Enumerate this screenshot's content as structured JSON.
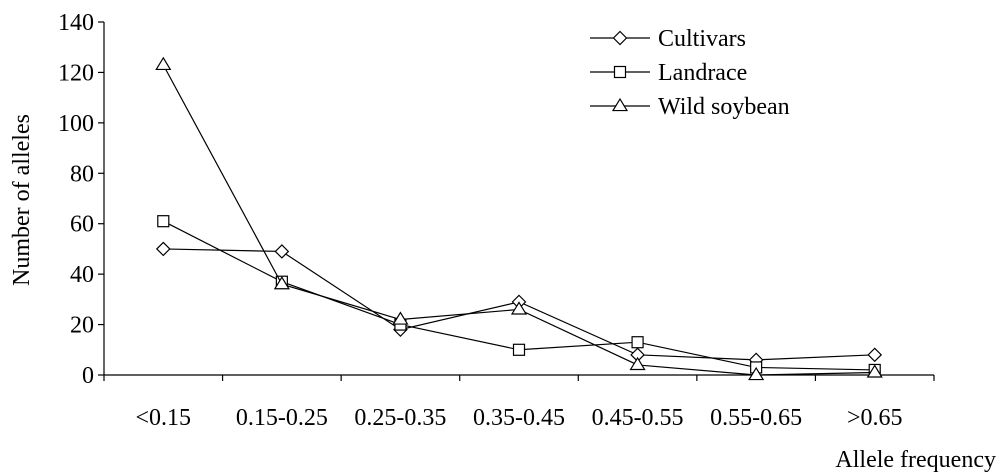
{
  "chart_data": {
    "type": "line",
    "categories": [
      "<0.15",
      "0.15-0.25",
      "0.25-0.35",
      "0.35-0.45",
      "0.45-0.55",
      "0.55-0.65",
      ">0.65"
    ],
    "series": [
      {
        "name": "Cultivars",
        "marker": "diamond",
        "values": [
          50,
          49,
          18,
          29,
          8,
          6,
          8
        ]
      },
      {
        "name": "Landrace",
        "marker": "square",
        "values": [
          61,
          37,
          20,
          10,
          13,
          3,
          2
        ]
      },
      {
        "name": "Wild soybean",
        "marker": "triangle",
        "values": [
          123,
          36,
          22,
          26,
          4,
          0,
          1
        ]
      }
    ],
    "xlabel": "Allele frequency",
    "ylabel": "Number of alleles",
    "ylim": [
      0,
      140
    ],
    "yticks": [
      0,
      20,
      40,
      60,
      80,
      100,
      120,
      140
    ],
    "grid": false,
    "legend_position": "top-right",
    "colors": {
      "line": "#000000",
      "marker_fill": "#ffffff",
      "background": "#ffffff"
    }
  }
}
